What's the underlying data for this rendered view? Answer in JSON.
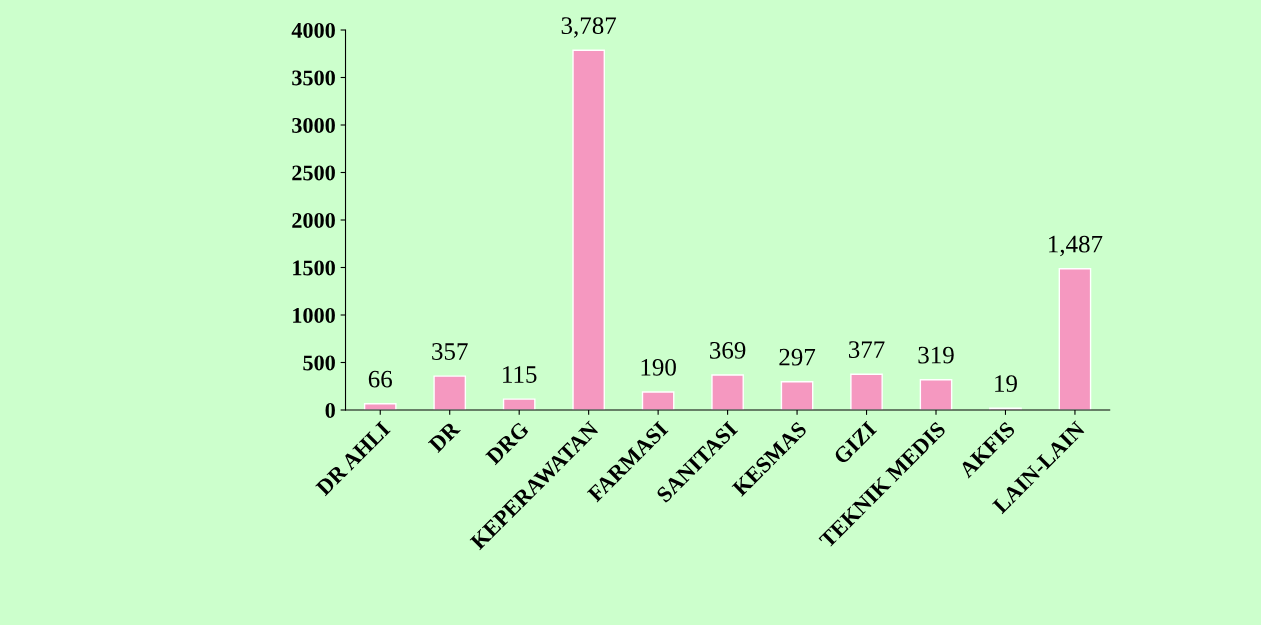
{
  "chart_data": {
    "type": "bar",
    "categories": [
      "DR AHLI",
      "DR",
      "DRG",
      "KEPERAWATAN",
      "FARMASI",
      "SANITASI",
      "KESMAS",
      "GIZI",
      "TEKNIK MEDIS",
      "AKFIS",
      "LAIN-LAIN"
    ],
    "values": [
      66,
      357,
      115,
      3787,
      190,
      369,
      297,
      377,
      319,
      19,
      1487
    ],
    "value_labels": [
      "66",
      "357",
      "115",
      "3,787",
      "190",
      "369",
      "297",
      "377",
      "319",
      "19",
      "1,487"
    ],
    "color": "#f598c0",
    "ylim": [
      0,
      4000
    ],
    "yticks": [
      0,
      500,
      1000,
      1500,
      2000,
      2500,
      3000,
      3500,
      4000
    ],
    "grid": false
  }
}
